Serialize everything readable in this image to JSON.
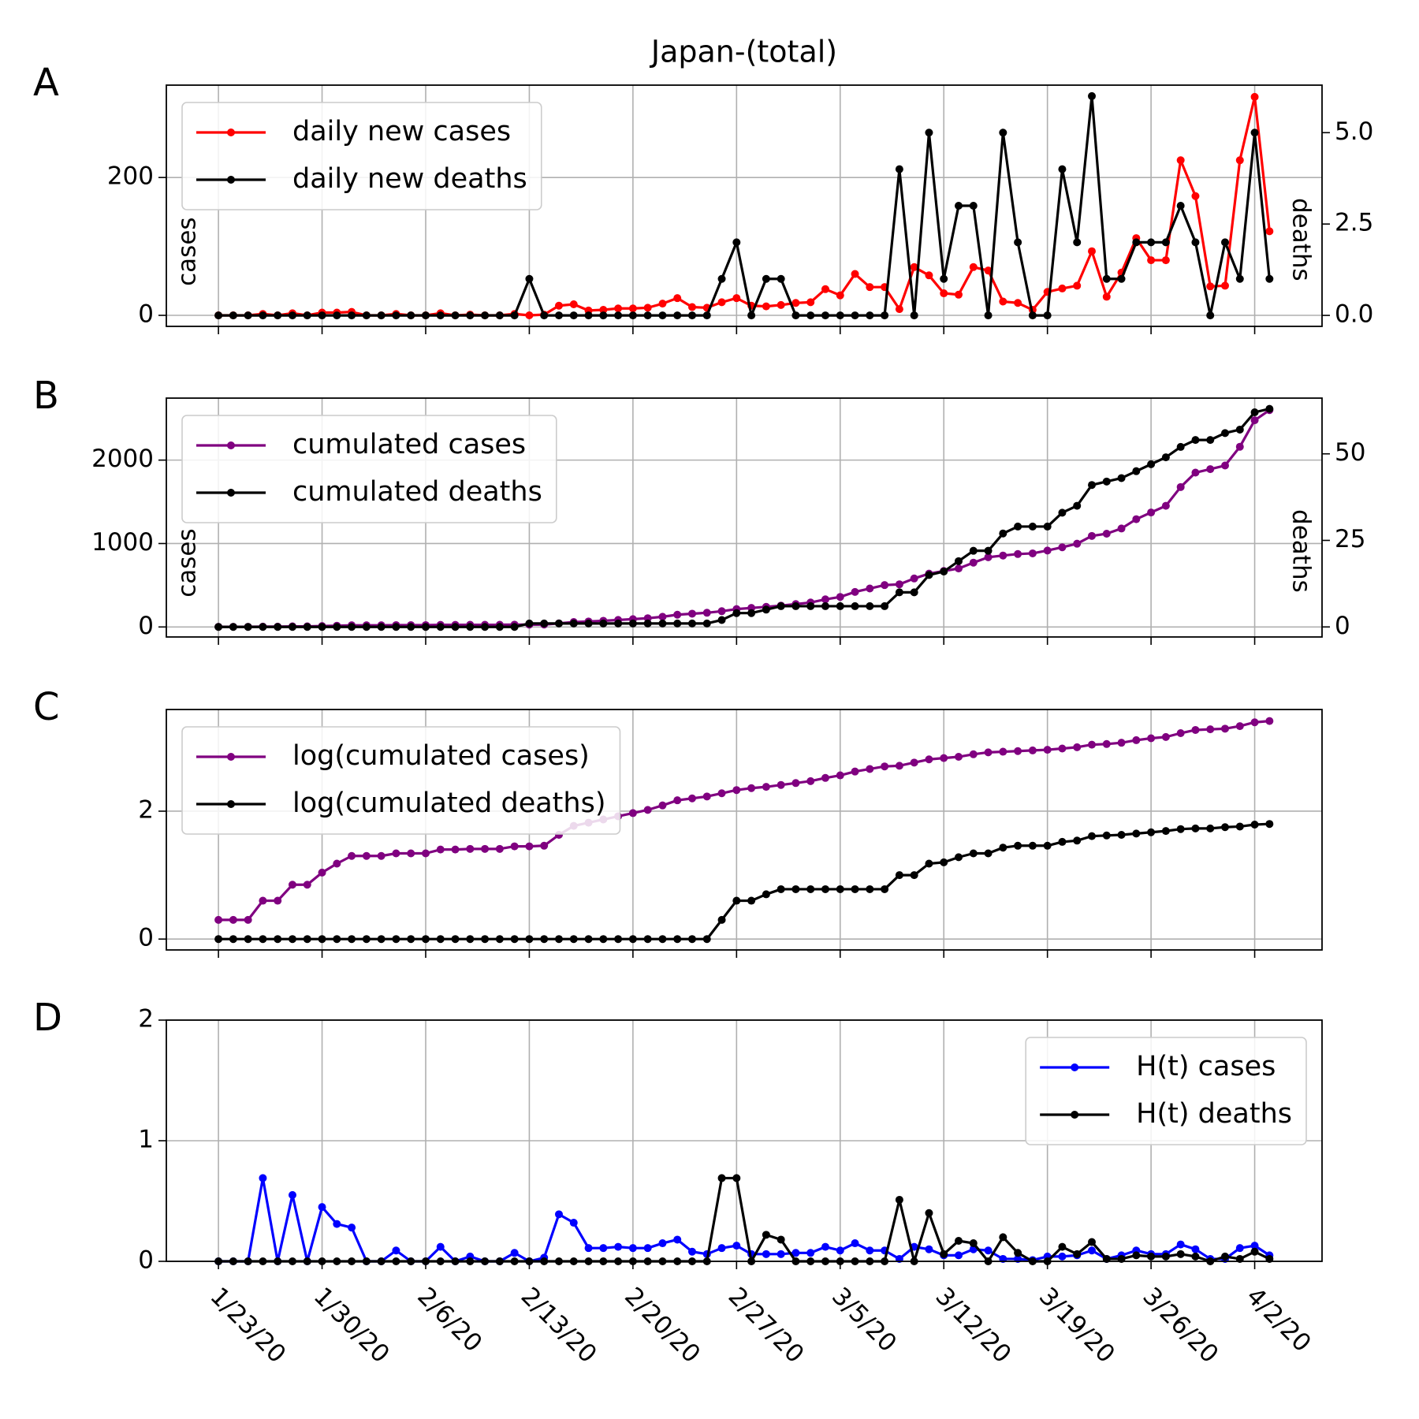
{
  "chart_data": [
    {
      "type": "line",
      "title": "Japan-(total)",
      "panel_label": "A",
      "ylabel": "cases",
      "y2label": "deaths",
      "grid": true,
      "legend": "upper left",
      "x": [
        "1/23/20",
        "1/24/20",
        "1/25/20",
        "1/26/20",
        "1/27/20",
        "1/28/20",
        "1/29/20",
        "1/30/20",
        "1/31/20",
        "2/1/20",
        "2/2/20",
        "2/3/20",
        "2/4/20",
        "2/5/20",
        "2/6/20",
        "2/7/20",
        "2/8/20",
        "2/9/20",
        "2/10/20",
        "2/11/20",
        "2/12/20",
        "2/13/20",
        "2/14/20",
        "2/15/20",
        "2/16/20",
        "2/17/20",
        "2/18/20",
        "2/19/20",
        "2/20/20",
        "2/21/20",
        "2/22/20",
        "2/23/20",
        "2/24/20",
        "2/25/20",
        "2/26/20",
        "2/27/20",
        "2/28/20",
        "2/29/20",
        "3/1/20",
        "3/2/20",
        "3/3/20",
        "3/4/20",
        "3/5/20",
        "3/6/20",
        "3/7/20",
        "3/8/20",
        "3/9/20",
        "3/10/20",
        "3/11/20",
        "3/12/20",
        "3/13/20",
        "3/14/20",
        "3/15/20",
        "3/16/20",
        "3/17/20",
        "3/18/20",
        "3/19/20",
        "3/20/20",
        "3/21/20",
        "3/22/20",
        "3/23/20",
        "3/24/20",
        "3/25/20",
        "3/26/20",
        "3/27/20",
        "3/28/20",
        "3/29/20",
        "3/30/20",
        "3/31/20",
        "4/1/20",
        "4/2/20",
        "4/3/20"
      ],
      "ylim": [
        -16,
        334
      ],
      "yticks": [
        0,
        200
      ],
      "y2lim": [
        -0.3,
        6.3
      ],
      "y2ticks": [
        {
          "value": 0,
          "label": "0.0"
        },
        {
          "value": 2.5,
          "label": "2.5"
        },
        {
          "value": 5,
          "label": "5.0"
        }
      ],
      "series": [
        {
          "name": "daily new cases",
          "color": "#ff0000",
          "values": [
            0,
            0,
            0,
            2,
            0,
            3,
            0,
            4,
            4,
            5,
            0,
            0,
            2,
            0,
            0,
            3,
            0,
            1,
            0,
            0,
            2,
            0,
            1,
            14,
            16,
            7,
            8,
            10,
            10,
            11,
            17,
            25,
            12,
            11,
            19,
            25,
            14,
            13,
            15,
            18,
            19,
            38,
            29,
            60,
            41,
            41,
            9,
            70,
            58,
            32,
            30,
            70,
            65,
            20,
            18,
            8,
            34,
            39,
            43,
            93,
            27,
            62,
            112,
            80,
            80,
            225,
            173,
            42,
            43,
            225,
            317,
            122
          ]
        },
        {
          "name": "daily new deaths",
          "color": "#000000",
          "axis": "y2",
          "values": [
            0,
            0,
            0,
            0,
            0,
            0,
            0,
            0,
            0,
            0,
            0,
            0,
            0,
            0,
            0,
            0,
            0,
            0,
            0,
            0,
            0,
            1,
            0,
            0,
            0,
            0,
            0,
            0,
            0,
            0,
            0,
            0,
            0,
            0,
            1,
            2,
            0,
            1,
            1,
            0,
            0,
            0,
            0,
            0,
            0,
            0,
            4,
            0,
            5,
            1,
            3,
            3,
            0,
            5,
            2,
            0,
            0,
            4,
            2,
            6,
            1,
            1,
            2,
            2,
            2,
            3,
            2,
            0,
            2,
            1,
            5,
            1
          ]
        }
      ]
    },
    {
      "type": "line",
      "panel_label": "B",
      "ylabel": "cases",
      "y2label": "deaths",
      "grid": true,
      "legend": "upper left",
      "x": [
        "1/23/20",
        "1/24/20",
        "1/25/20",
        "1/26/20",
        "1/27/20",
        "1/28/20",
        "1/29/20",
        "1/30/20",
        "1/31/20",
        "2/1/20",
        "2/2/20",
        "2/3/20",
        "2/4/20",
        "2/5/20",
        "2/6/20",
        "2/7/20",
        "2/8/20",
        "2/9/20",
        "2/10/20",
        "2/11/20",
        "2/12/20",
        "2/13/20",
        "2/14/20",
        "2/15/20",
        "2/16/20",
        "2/17/20",
        "2/18/20",
        "2/19/20",
        "2/20/20",
        "2/21/20",
        "2/22/20",
        "2/23/20",
        "2/24/20",
        "2/25/20",
        "2/26/20",
        "2/27/20",
        "2/28/20",
        "2/29/20",
        "3/1/20",
        "3/2/20",
        "3/3/20",
        "3/4/20",
        "3/5/20",
        "3/6/20",
        "3/7/20",
        "3/8/20",
        "3/9/20",
        "3/10/20",
        "3/11/20",
        "3/12/20",
        "3/13/20",
        "3/14/20",
        "3/15/20",
        "3/16/20",
        "3/17/20",
        "3/18/20",
        "3/19/20",
        "3/20/20",
        "3/21/20",
        "3/22/20",
        "3/23/20",
        "3/24/20",
        "3/25/20",
        "3/26/20",
        "3/27/20",
        "3/28/20",
        "3/29/20",
        "3/30/20",
        "3/31/20",
        "4/1/20",
        "4/2/20",
        "4/3/20"
      ],
      "ylim": [
        -120,
        2743
      ],
      "yticks": [
        0,
        1000,
        2000
      ],
      "y2lim": [
        -2.9,
        66.1
      ],
      "y2ticks": [
        0,
        25,
        50
      ],
      "series": [
        {
          "name": "cumulated cases",
          "color": "#800080",
          "values": [
            2,
            2,
            2,
            4,
            4,
            7,
            7,
            11,
            15,
            20,
            20,
            20,
            22,
            22,
            22,
            25,
            25,
            26,
            26,
            26,
            28,
            28,
            29,
            43,
            59,
            66,
            74,
            84,
            94,
            105,
            122,
            147,
            159,
            170,
            189,
            214,
            228,
            241,
            256,
            274,
            293,
            331,
            360,
            420,
            461,
            502,
            511,
            581,
            639,
            671,
            701,
            771,
            836,
            856,
            874,
            882,
            916,
            955,
            998,
            1091,
            1118,
            1180,
            1292,
            1372,
            1452,
            1677,
            1850,
            1892,
            1935,
            2160,
            2477,
            2599
          ]
        },
        {
          "name": "cumulated deaths",
          "color": "#000000",
          "axis": "y2",
          "values": [
            0,
            0,
            0,
            0,
            0,
            0,
            0,
            0,
            0,
            0,
            0,
            0,
            0,
            0,
            0,
            0,
            0,
            0,
            0,
            0,
            0,
            1,
            1,
            1,
            1,
            1,
            1,
            1,
            1,
            1,
            1,
            1,
            1,
            1,
            2,
            4,
            4,
            5,
            6,
            6,
            6,
            6,
            6,
            6,
            6,
            6,
            10,
            10,
            15,
            16,
            19,
            22,
            22,
            27,
            29,
            29,
            29,
            33,
            35,
            41,
            42,
            43,
            45,
            47,
            49,
            52,
            54,
            54,
            56,
            57,
            62,
            63
          ]
        }
      ]
    },
    {
      "type": "line",
      "panel_label": "C",
      "grid": true,
      "legend": "upper left",
      "x": [
        "1/23/20",
        "1/24/20",
        "1/25/20",
        "1/26/20",
        "1/27/20",
        "1/28/20",
        "1/29/20",
        "1/30/20",
        "1/31/20",
        "2/1/20",
        "2/2/20",
        "2/3/20",
        "2/4/20",
        "2/5/20",
        "2/6/20",
        "2/7/20",
        "2/8/20",
        "2/9/20",
        "2/10/20",
        "2/11/20",
        "2/12/20",
        "2/13/20",
        "2/14/20",
        "2/15/20",
        "2/16/20",
        "2/17/20",
        "2/18/20",
        "2/19/20",
        "2/20/20",
        "2/21/20",
        "2/22/20",
        "2/23/20",
        "2/24/20",
        "2/25/20",
        "2/26/20",
        "2/27/20",
        "2/28/20",
        "2/29/20",
        "3/1/20",
        "3/2/20",
        "3/3/20",
        "3/4/20",
        "3/5/20",
        "3/6/20",
        "3/7/20",
        "3/8/20",
        "3/9/20",
        "3/10/20",
        "3/11/20",
        "3/12/20",
        "3/13/20",
        "3/14/20",
        "3/15/20",
        "3/16/20",
        "3/17/20",
        "3/18/20",
        "3/19/20",
        "3/20/20",
        "3/21/20",
        "3/22/20",
        "3/23/20",
        "3/24/20",
        "3/25/20",
        "3/26/20",
        "3/27/20",
        "3/28/20",
        "3/29/20",
        "3/30/20",
        "3/31/20",
        "4/1/20",
        "4/2/20",
        "4/3/20"
      ],
      "ylim": [
        -0.17,
        3.59
      ],
      "yticks": [
        0,
        2
      ],
      "series": [
        {
          "name": "log(cumulated cases)",
          "color": "#800080",
          "values": [
            0.3,
            0.3,
            0.3,
            0.6,
            0.6,
            0.85,
            0.85,
            1.04,
            1.18,
            1.3,
            1.3,
            1.3,
            1.34,
            1.34,
            1.34,
            1.4,
            1.4,
            1.41,
            1.41,
            1.41,
            1.45,
            1.45,
            1.46,
            1.63,
            1.77,
            1.82,
            1.87,
            1.92,
            1.97,
            2.02,
            2.09,
            2.17,
            2.2,
            2.23,
            2.28,
            2.33,
            2.36,
            2.38,
            2.41,
            2.44,
            2.47,
            2.52,
            2.56,
            2.62,
            2.66,
            2.7,
            2.71,
            2.76,
            2.81,
            2.83,
            2.85,
            2.89,
            2.92,
            2.93,
            2.94,
            2.95,
            2.96,
            2.98,
            3,
            3.04,
            3.05,
            3.07,
            3.11,
            3.14,
            3.16,
            3.22,
            3.27,
            3.28,
            3.29,
            3.33,
            3.39,
            3.41
          ]
        },
        {
          "name": "log(cumulated deaths)",
          "color": "#000000",
          "values": [
            0,
            0,
            0,
            0,
            0,
            0,
            0,
            0,
            0,
            0,
            0,
            0,
            0,
            0,
            0,
            0,
            0,
            0,
            0,
            0,
            0,
            0,
            0,
            0,
            0,
            0,
            0,
            0,
            0,
            0,
            0,
            0,
            0,
            0,
            0.3,
            0.6,
            0.6,
            0.7,
            0.78,
            0.78,
            0.78,
            0.78,
            0.78,
            0.78,
            0.78,
            0.78,
            1,
            1,
            1.18,
            1.2,
            1.28,
            1.34,
            1.34,
            1.43,
            1.46,
            1.46,
            1.46,
            1.52,
            1.54,
            1.61,
            1.62,
            1.63,
            1.65,
            1.67,
            1.69,
            1.72,
            1.73,
            1.73,
            1.75,
            1.76,
            1.79,
            1.8
          ]
        }
      ]
    },
    {
      "type": "line",
      "panel_label": "D",
      "grid": true,
      "legend": "upper right",
      "x": [
        "1/23/20",
        "1/24/20",
        "1/25/20",
        "1/26/20",
        "1/27/20",
        "1/28/20",
        "1/29/20",
        "1/30/20",
        "1/31/20",
        "2/1/20",
        "2/2/20",
        "2/3/20",
        "2/4/20",
        "2/5/20",
        "2/6/20",
        "2/7/20",
        "2/8/20",
        "2/9/20",
        "2/10/20",
        "2/11/20",
        "2/12/20",
        "2/13/20",
        "2/14/20",
        "2/15/20",
        "2/16/20",
        "2/17/20",
        "2/18/20",
        "2/19/20",
        "2/20/20",
        "2/21/20",
        "2/22/20",
        "2/23/20",
        "2/24/20",
        "2/25/20",
        "2/26/20",
        "2/27/20",
        "2/28/20",
        "2/29/20",
        "3/1/20",
        "3/2/20",
        "3/3/20",
        "3/4/20",
        "3/5/20",
        "3/6/20",
        "3/7/20",
        "3/8/20",
        "3/9/20",
        "3/10/20",
        "3/11/20",
        "3/12/20",
        "3/13/20",
        "3/14/20",
        "3/15/20",
        "3/16/20",
        "3/17/20",
        "3/18/20",
        "3/19/20",
        "3/20/20",
        "3/21/20",
        "3/22/20",
        "3/23/20",
        "3/24/20",
        "3/25/20",
        "3/26/20",
        "3/27/20",
        "3/28/20",
        "3/29/20",
        "3/30/20",
        "3/31/20",
        "4/1/20",
        "4/2/20",
        "4/3/20"
      ],
      "xticks": [
        "1/23/20",
        "1/30/20",
        "2/6/20",
        "2/13/20",
        "2/20/20",
        "2/27/20",
        "3/5/20",
        "3/12/20",
        "3/19/20",
        "3/26/20",
        "4/2/20"
      ],
      "ylim": [
        0,
        2
      ],
      "yticks": [
        0,
        1,
        2
      ],
      "series": [
        {
          "name": "H(t) cases",
          "color": "#0000ff",
          "values": [
            0,
            0,
            0,
            0.69,
            0,
            0.55,
            0,
            0.45,
            0.31,
            0.28,
            0,
            0,
            0.09,
            0,
            0,
            0.12,
            0,
            0.04,
            0,
            0,
            0.07,
            0,
            0.03,
            0.39,
            0.32,
            0.11,
            0.11,
            0.12,
            0.11,
            0.11,
            0.15,
            0.18,
            0.08,
            0.06,
            0.11,
            0.13,
            0.06,
            0.06,
            0.06,
            0.07,
            0.07,
            0.12,
            0.09,
            0.15,
            0.09,
            0.09,
            0.02,
            0.12,
            0.1,
            0.05,
            0.05,
            0.1,
            0.09,
            0.02,
            0.02,
            0.01,
            0.04,
            0.04,
            0.05,
            0.09,
            0.02,
            0.05,
            0.09,
            0.06,
            0.06,
            0.14,
            0.1,
            0.02,
            0.02,
            0.11,
            0.13,
            0.05
          ]
        },
        {
          "name": "H(t) deaths",
          "color": "#000000",
          "values": [
            0,
            0,
            0,
            0,
            0,
            0,
            0,
            0,
            0,
            0,
            0,
            0,
            0,
            0,
            0,
            0,
            0,
            0,
            0,
            0,
            0,
            0,
            0,
            0,
            0,
            0,
            0,
            0,
            0,
            0,
            0,
            0,
            0,
            0,
            0.69,
            0.69,
            0,
            0.22,
            0.18,
            0,
            0,
            0,
            0,
            0,
            0,
            0,
            0.51,
            0,
            0.4,
            0.06,
            0.17,
            0.15,
            0,
            0.2,
            0.07,
            0,
            0,
            0.12,
            0.06,
            0.16,
            0.02,
            0.02,
            0.05,
            0.04,
            0.04,
            0.06,
            0.04,
            0,
            0.04,
            0.02,
            0.08,
            0.02
          ]
        }
      ]
    }
  ]
}
